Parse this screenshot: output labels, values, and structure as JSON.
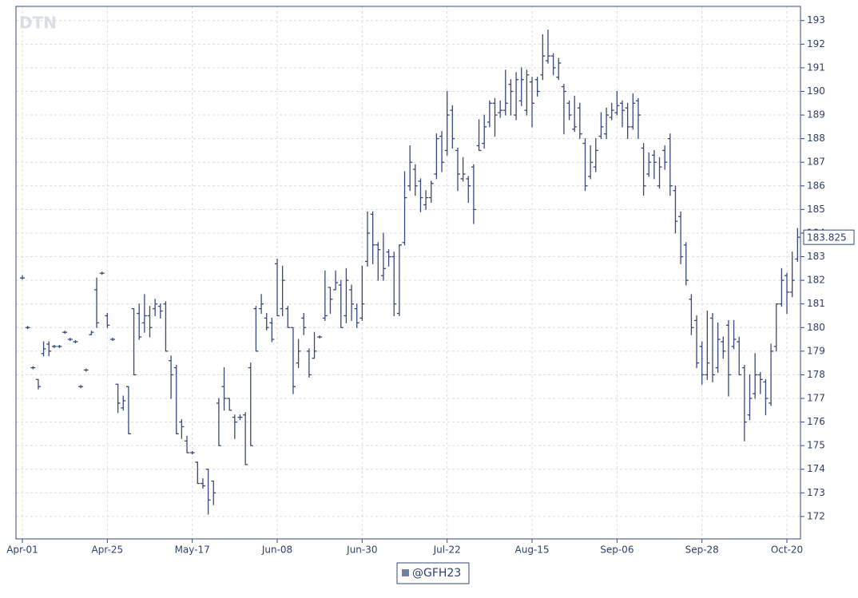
{
  "chart_data": {
    "type": "ohlc",
    "watermark": "DTN",
    "categories": [
      "Apr-01",
      null,
      null,
      null,
      null,
      null,
      null,
      null,
      null,
      null,
      null,
      null,
      null,
      null,
      null,
      null,
      "Apr-25",
      null,
      null,
      null,
      null,
      null,
      null,
      null,
      null,
      null,
      null,
      null,
      null,
      null,
      null,
      null,
      "May-17",
      null,
      null,
      null,
      null,
      null,
      null,
      null,
      null,
      null,
      null,
      null,
      null,
      null,
      null,
      null,
      "Jun-08",
      null,
      null,
      null,
      null,
      null,
      null,
      null,
      null,
      null,
      null,
      null,
      null,
      null,
      null,
      null,
      "Jun-30",
      null,
      null,
      null,
      null,
      null,
      null,
      null,
      null,
      null,
      null,
      null,
      null,
      null,
      null,
      null,
      "Jul-22",
      null,
      null,
      null,
      null,
      null,
      null,
      null,
      null,
      null,
      null,
      null,
      null,
      null,
      null,
      null,
      "Aug-15",
      null,
      null,
      null,
      null,
      null,
      null,
      null,
      null,
      null,
      null,
      null,
      null,
      null,
      null,
      null,
      "Sep-06",
      null,
      null,
      null,
      null,
      null,
      null,
      null,
      null,
      null,
      null,
      null,
      null,
      null,
      null,
      null,
      "Sep-28",
      null,
      null,
      null,
      null,
      null,
      null,
      null,
      null,
      null,
      null,
      null,
      null,
      null,
      null,
      null,
      "Oct-20",
      null,
      null
    ],
    "series": [
      {
        "name": "@GFH23",
        "color": "#34497a",
        "open": [
          182.1,
          180.0,
          178.3,
          177.8,
          178.9,
          179.3,
          179.2,
          179.2,
          179.8,
          179.5,
          179.4,
          177.5,
          178.2,
          179.7,
          181.6,
          182.3,
          180.5,
          179.5,
          177.6,
          176.6,
          177.5,
          180.8,
          180.6,
          180.2,
          180.5,
          180.8,
          180.9,
          181.0,
          178.6,
          178.3,
          176.0,
          175.2,
          174.7,
          174.3,
          173.4,
          174.0,
          173.5,
          176.8,
          177.5,
          177.0,
          176.2,
          176.2,
          176.3,
          178.3,
          180.8,
          180.8,
          180.4,
          180.2,
          182.7,
          180.8,
          180.8,
          180.0,
          178.5,
          180.4,
          179.0,
          178.7,
          179.6,
          180.4,
          181.7,
          181.6,
          181.8,
          180.5,
          181.6,
          180.8,
          180.4,
          182.8,
          184.8,
          183.5,
          182.2,
          183.2,
          183.0,
          180.6,
          183.6,
          186.0,
          186.7,
          186.2,
          185.2,
          185.5,
          186.5,
          188.1,
          187.5,
          189.2,
          187.5,
          186.3,
          186.3,
          186.8,
          187.7,
          187.8,
          188.7,
          189.5,
          189.1,
          189.2,
          190.3,
          189.0,
          189.6,
          189.2,
          190.4,
          190.5,
          190.7,
          191.3,
          191.5,
          190.6,
          190.2,
          189.5,
          188.4,
          189.3,
          187.8,
          186.4,
          186.8,
          188.1,
          188.2,
          188.9,
          189.1,
          189.5,
          189.3,
          188.5,
          189.6,
          187.6,
          186.5,
          187.3,
          186.0,
          187.5,
          188.0,
          185.8,
          184.7,
          183.5,
          181.2,
          180.3,
          179.2,
          178.0,
          180.4,
          178.3,
          179.4,
          180.1,
          179.2,
          179.4,
          178.3,
          176.3,
          177.2,
          178.0,
          177.7,
          176.8,
          179.2,
          181.0,
          182.2,
          181.5,
          182.9
        ],
        "high": [
          182.2,
          180.05,
          178.35,
          177.8,
          179.4,
          179.4,
          179.25,
          179.25,
          179.85,
          179.55,
          179.45,
          177.55,
          178.25,
          179.85,
          182.1,
          182.35,
          180.6,
          179.55,
          177.6,
          177.1,
          177.5,
          180.8,
          181.0,
          181.4,
          180.9,
          181.2,
          181.0,
          181.1,
          178.8,
          178.4,
          176.1,
          175.4,
          174.75,
          174.3,
          173.6,
          174.0,
          173.5,
          177.0,
          178.3,
          177.0,
          176.3,
          176.3,
          176.4,
          178.5,
          180.9,
          181.4,
          180.6,
          180.4,
          182.9,
          182.6,
          180.9,
          180.0,
          179.5,
          180.6,
          179.1,
          179.8,
          179.65,
          182.4,
          181.7,
          182.4,
          182.0,
          182.5,
          181.8,
          181.0,
          182.6,
          184.9,
          184.9,
          183.6,
          184.0,
          183.3,
          183.2,
          183.5,
          186.6,
          187.7,
          186.9,
          186.3,
          185.8,
          186.2,
          188.2,
          188.3,
          190.0,
          189.4,
          187.6,
          187.2,
          186.4,
          186.9,
          188.8,
          189.0,
          189.6,
          189.7,
          189.6,
          190.9,
          190.5,
          190.8,
          191.0,
          190.9,
          190.6,
          190.6,
          192.4,
          192.6,
          191.6,
          191.4,
          190.3,
          189.6,
          189.8,
          189.5,
          188.0,
          187.7,
          188.0,
          189.1,
          189.3,
          189.5,
          190.0,
          189.6,
          189.5,
          189.9,
          189.7,
          187.8,
          187.4,
          187.5,
          187.2,
          187.7,
          188.2,
          186.0,
          184.9,
          183.6,
          181.4,
          180.5,
          179.4,
          180.7,
          180.6,
          180.2,
          179.6,
          180.3,
          180.3,
          179.6,
          178.4,
          178.0,
          178.9,
          178.1,
          177.8,
          179.3,
          181.0,
          182.5,
          182.3,
          183.2,
          184.2
        ],
        "low": [
          182.05,
          179.95,
          178.25,
          177.4,
          178.8,
          178.8,
          179.15,
          179.15,
          179.75,
          179.45,
          179.35,
          177.45,
          178.15,
          179.7,
          180.0,
          182.25,
          180.0,
          179.45,
          176.4,
          176.5,
          175.5,
          178.0,
          179.5,
          179.8,
          179.6,
          180.5,
          180.4,
          179.0,
          177.0,
          175.5,
          175.3,
          174.7,
          174.65,
          173.4,
          173.2,
          172.1,
          172.5,
          175.0,
          176.5,
          176.5,
          175.3,
          176.1,
          174.2,
          175.0,
          179.0,
          180.6,
          179.9,
          179.4,
          180.5,
          180.5,
          180.0,
          177.2,
          178.3,
          179.7,
          177.9,
          178.7,
          179.55,
          180.3,
          180.6,
          181.6,
          180.0,
          180.2,
          180.3,
          180.0,
          180.3,
          182.6,
          182.7,
          182.0,
          182.0,
          182.6,
          180.5,
          180.5,
          183.5,
          185.8,
          185.6,
          184.9,
          185.0,
          185.3,
          186.3,
          186.6,
          187.3,
          187.6,
          185.8,
          186.2,
          185.3,
          184.4,
          187.5,
          187.6,
          188.5,
          188.1,
          188.9,
          189.0,
          189.0,
          188.8,
          189.4,
          189.0,
          188.5,
          189.8,
          190.5,
          191.2,
          190.7,
          190.5,
          188.2,
          188.8,
          188.3,
          188.0,
          185.8,
          186.3,
          186.6,
          188.0,
          188.0,
          188.8,
          189.0,
          188.5,
          188.0,
          188.4,
          188.0,
          185.6,
          186.4,
          186.3,
          185.9,
          186.7,
          185.6,
          184.0,
          182.7,
          181.8,
          179.7,
          178.3,
          177.6,
          177.8,
          177.7,
          178.1,
          178.7,
          177.1,
          179.1,
          178.0,
          175.2,
          176.1,
          177.0,
          177.2,
          176.3,
          176.7,
          179.0,
          180.9,
          180.6,
          181.3,
          182.8
        ],
        "close": [
          182.1,
          180.0,
          178.3,
          177.5,
          179.1,
          179.0,
          179.2,
          179.2,
          179.8,
          179.5,
          179.4,
          177.5,
          178.2,
          179.8,
          180.2,
          182.3,
          180.1,
          179.5,
          176.8,
          176.9,
          175.5,
          178.0,
          179.6,
          180.5,
          180.0,
          181.0,
          180.7,
          179.0,
          178.0,
          175.5,
          175.8,
          174.7,
          174.7,
          173.4,
          173.3,
          172.7,
          173.0,
          175.0,
          177.0,
          176.5,
          176.0,
          176.2,
          174.2,
          175.0,
          179.0,
          181.0,
          180.0,
          179.5,
          180.5,
          182.0,
          180.0,
          177.5,
          179.0,
          180.0,
          178.0,
          179.0,
          179.6,
          180.5,
          181.2,
          181.9,
          180.0,
          182.0,
          181.0,
          180.2,
          181.0,
          184.0,
          183.5,
          183.3,
          182.5,
          183.0,
          181.0,
          183.5,
          185.5,
          187.0,
          186.0,
          185.5,
          185.5,
          186.1,
          188.0,
          187.0,
          189.0,
          188.0,
          186.5,
          186.5,
          186.0,
          185.0,
          187.5,
          188.5,
          189.5,
          189.0,
          189.2,
          189.5,
          190.0,
          190.5,
          190.5,
          190.7,
          189.5,
          190.0,
          191.5,
          191.5,
          191.0,
          191.2,
          190.0,
          189.0,
          188.5,
          188.2,
          186.0,
          187.0,
          187.5,
          188.5,
          189.0,
          189.2,
          189.4,
          189.2,
          188.5,
          189.5,
          189.0,
          186.0,
          187.0,
          187.0,
          186.8,
          187.0,
          186.0,
          184.5,
          183.0,
          182.0,
          180.0,
          178.5,
          178.0,
          178.5,
          178.0,
          179.5,
          179.0,
          178.0,
          179.5,
          178.0,
          176.0,
          177.0,
          178.0,
          177.8,
          177.0,
          179.0,
          181.0,
          182.0,
          181.5,
          182.0,
          183.825
        ]
      }
    ],
    "ylim": [
      171.05,
      193.6
    ],
    "yticks": [
      172,
      173,
      174,
      175,
      176,
      177,
      178,
      179,
      180,
      181,
      182,
      183,
      184,
      185,
      186,
      187,
      188,
      189,
      190,
      191,
      192,
      193
    ],
    "grid": true,
    "legend": "bottom"
  }
}
